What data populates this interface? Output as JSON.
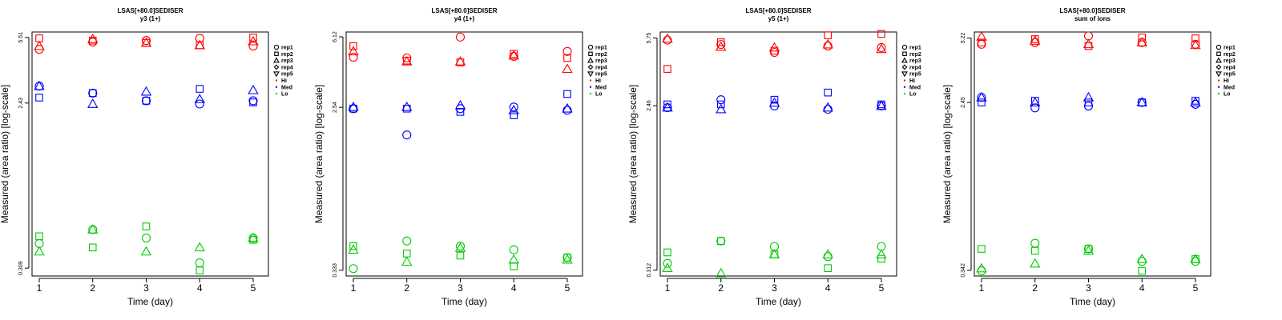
{
  "chart_data": [
    {
      "type": "scatter",
      "title": "LSAS[+80.0]SEDISER",
      "subtitle": "y3 (1+)",
      "xlabel": "Time (day)",
      "ylabel": "Measured (area ratio) [log-scale]",
      "y_scale": "log",
      "ylim": [
        0.28,
        5.9
      ],
      "x_ticks": [
        "1",
        "2",
        "3",
        "4",
        "5"
      ],
      "y_tick_values": [
        0.309,
        2.43,
        5.51
      ],
      "y_tick_labels": [
        "0.309",
        "2.43",
        "5.51"
      ],
      "legend_position": "right",
      "series": [
        {
          "name": "rep1",
          "group": "Hi",
          "marker": "circle",
          "color": "#ff0000",
          "x": [
            1,
            2,
            3,
            4,
            5
          ],
          "y": [
            4.75,
            5.2,
            5.3,
            5.45,
            4.95
          ]
        },
        {
          "name": "rep2",
          "group": "Hi",
          "marker": "square",
          "color": "#ff0000",
          "x": [
            1,
            2,
            3,
            4,
            5
          ],
          "y": [
            5.45,
            5.3,
            5.15,
            5.0,
            5.5
          ]
        },
        {
          "name": "rep3",
          "group": "Hi",
          "marker": "triangle-up",
          "color": "#ff0000",
          "x": [
            1,
            2,
            3,
            4,
            5
          ],
          "y": [
            4.95,
            5.4,
            5.15,
            5.0,
            5.25
          ]
        },
        {
          "name": "rep1",
          "group": "Med",
          "marker": "circle",
          "color": "#0000ff",
          "x": [
            1,
            2,
            3,
            4,
            5
          ],
          "y": [
            3.0,
            2.75,
            2.5,
            2.4,
            2.5
          ]
        },
        {
          "name": "rep2",
          "group": "Med",
          "marker": "square",
          "color": "#0000ff",
          "x": [
            1,
            2,
            3,
            4,
            5
          ],
          "y": [
            2.6,
            2.75,
            2.5,
            2.9,
            2.45
          ]
        },
        {
          "name": "rep3",
          "group": "Med",
          "marker": "triangle-up",
          "color": "#0000ff",
          "x": [
            1,
            2,
            3,
            4,
            5
          ],
          "y": [
            3.0,
            2.4,
            2.8,
            2.55,
            2.85
          ]
        },
        {
          "name": "rep1",
          "group": "Lo",
          "marker": "circle",
          "color": "#00cc00",
          "x": [
            1,
            2,
            3,
            4,
            5
          ],
          "y": [
            0.42,
            0.5,
            0.45,
            0.33,
            0.45
          ]
        },
        {
          "name": "rep2",
          "group": "Lo",
          "marker": "square",
          "color": "#00cc00",
          "x": [
            1,
            2,
            3,
            4,
            5
          ],
          "y": [
            0.46,
            0.4,
            0.52,
            0.3,
            0.44
          ]
        },
        {
          "name": "rep3",
          "group": "Lo",
          "marker": "triangle-up",
          "color": "#00cc00",
          "x": [
            1,
            2,
            3,
            4,
            5
          ],
          "y": [
            0.38,
            0.5,
            0.38,
            0.4,
            0.45
          ]
        }
      ]
    },
    {
      "type": "scatter",
      "title": "LSAS[+80.0]SEDISER",
      "subtitle": "y4 (1+)",
      "xlabel": "Time (day)",
      "ylabel": "Measured (area ratio) [log-scale]",
      "y_scale": "log",
      "ylim": [
        0.31,
        6.5
      ],
      "x_ticks": [
        "1",
        "2",
        "3",
        "4",
        "5"
      ],
      "y_tick_values": [
        0.333,
        2.54,
        6.12
      ],
      "y_tick_labels": [
        "0.333",
        "2.54",
        "6.12"
      ],
      "legend_position": "right",
      "series": [
        {
          "name": "rep1",
          "group": "Hi",
          "marker": "circle",
          "color": "#ff0000",
          "x": [
            1,
            2,
            3,
            4,
            5
          ],
          "y": [
            4.75,
            4.7,
            6.1,
            4.8,
            5.1
          ]
        },
        {
          "name": "rep2",
          "group": "Hi",
          "marker": "square",
          "color": "#ff0000",
          "x": [
            1,
            2,
            3,
            4,
            5
          ],
          "y": [
            5.45,
            4.55,
            4.45,
            4.95,
            4.7
          ]
        },
        {
          "name": "rep3",
          "group": "Hi",
          "marker": "triangle-up",
          "color": "#ff0000",
          "x": [
            1,
            2,
            3,
            4,
            5
          ],
          "y": [
            5.1,
            4.5,
            4.5,
            4.85,
            4.1
          ]
        },
        {
          "name": "rep1",
          "group": "Med",
          "marker": "circle",
          "color": "#0000ff",
          "x": [
            1,
            2,
            3,
            4,
            5
          ],
          "y": [
            2.5,
            1.8,
            2.5,
            2.55,
            2.45
          ]
        },
        {
          "name": "rep2",
          "group": "Med",
          "marker": "square",
          "color": "#0000ff",
          "x": [
            1,
            2,
            3,
            4,
            5
          ],
          "y": [
            2.5,
            2.5,
            2.4,
            2.3,
            3.0
          ]
        },
        {
          "name": "rep3",
          "group": "Med",
          "marker": "triangle-up",
          "color": "#0000ff",
          "x": [
            1,
            2,
            3,
            4,
            5
          ],
          "y": [
            2.55,
            2.55,
            2.6,
            2.45,
            2.5
          ]
        },
        {
          "name": "rep1",
          "group": "Lo",
          "marker": "circle",
          "color": "#00cc00",
          "x": [
            1,
            2,
            3,
            4,
            5
          ],
          "y": [
            0.34,
            0.48,
            0.45,
            0.43,
            0.39
          ]
        },
        {
          "name": "rep2",
          "group": "Lo",
          "marker": "square",
          "color": "#00cc00",
          "x": [
            1,
            2,
            3,
            4,
            5
          ],
          "y": [
            0.45,
            0.41,
            0.4,
            0.35,
            0.39
          ]
        },
        {
          "name": "rep3",
          "group": "Lo",
          "marker": "triangle-up",
          "color": "#00cc00",
          "x": [
            1,
            2,
            3,
            4,
            5
          ],
          "y": [
            0.43,
            0.37,
            0.44,
            0.38,
            0.38
          ]
        }
      ]
    },
    {
      "type": "scatter",
      "title": "LSAS[+80.0]SEDISER",
      "subtitle": "y5 (1+)",
      "xlabel": "Time (day)",
      "ylabel": "Measured (area ratio) [log-scale]",
      "y_scale": "log",
      "ylim": [
        0.29,
        6.2
      ],
      "x_ticks": [
        "1",
        "2",
        "3",
        "4",
        "5"
      ],
      "y_tick_values": [
        0.312,
        2.46,
        5.75
      ],
      "y_tick_labels": [
        "0.312",
        "2.46",
        "5.75"
      ],
      "legend_position": "right",
      "series": [
        {
          "name": "rep1",
          "group": "Hi",
          "marker": "circle",
          "color": "#ff0000",
          "x": [
            1,
            2,
            3,
            4,
            5
          ],
          "y": [
            5.6,
            5.3,
            4.8,
            5.2,
            5.1
          ]
        },
        {
          "name": "rep2",
          "group": "Hi",
          "marker": "square",
          "color": "#ff0000",
          "x": [
            1,
            2,
            3,
            4,
            5
          ],
          "y": [
            3.9,
            5.45,
            4.9,
            5.95,
            6.05
          ]
        },
        {
          "name": "rep3",
          "group": "Hi",
          "marker": "triangle-up",
          "color": "#ff0000",
          "x": [
            1,
            2,
            3,
            4,
            5
          ],
          "y": [
            5.7,
            5.15,
            5.1,
            5.3,
            5.0
          ]
        },
        {
          "name": "rep1",
          "group": "Med",
          "marker": "circle",
          "color": "#0000ff",
          "x": [
            1,
            2,
            3,
            4,
            5
          ],
          "y": [
            2.4,
            2.65,
            2.45,
            2.35,
            2.45
          ]
        },
        {
          "name": "rep2",
          "group": "Med",
          "marker": "square",
          "color": "#0000ff",
          "x": [
            1,
            2,
            3,
            4,
            5
          ],
          "y": [
            2.5,
            2.5,
            2.65,
            2.9,
            2.5
          ]
        },
        {
          "name": "rep3",
          "group": "Med",
          "marker": "triangle-up",
          "color": "#0000ff",
          "x": [
            1,
            2,
            3,
            4,
            5
          ],
          "y": [
            2.4,
            2.35,
            2.55,
            2.4,
            2.45
          ]
        },
        {
          "name": "rep1",
          "group": "Lo",
          "marker": "circle",
          "color": "#00cc00",
          "x": [
            1,
            2,
            3,
            4,
            5
          ],
          "y": [
            0.34,
            0.45,
            0.42,
            0.37,
            0.42
          ]
        },
        {
          "name": "rep2",
          "group": "Lo",
          "marker": "square",
          "color": "#00cc00",
          "x": [
            1,
            2,
            3,
            4,
            5
          ],
          "y": [
            0.39,
            0.45,
            0.38,
            0.32,
            0.36
          ]
        },
        {
          "name": "rep3",
          "group": "Lo",
          "marker": "triangle-up",
          "color": "#00cc00",
          "x": [
            1,
            2,
            3,
            4,
            5
          ],
          "y": [
            0.32,
            0.3,
            0.38,
            0.38,
            0.38
          ]
        }
      ]
    },
    {
      "type": "scatter",
      "title": "LSAS[+80.0]SEDISER",
      "subtitle": "sum of ions",
      "xlabel": "Time (day)",
      "ylabel": "Measured (area ratio) [log-scale]",
      "y_scale": "log",
      "ylim": [
        0.32,
        5.6
      ],
      "x_ticks": [
        "1",
        "2",
        "3",
        "4",
        "5"
      ],
      "y_tick_values": [
        0.342,
        2.45,
        5.22
      ],
      "y_tick_labels": [
        "0.342",
        "2.45",
        "5.22"
      ],
      "legend_position": "right",
      "series": [
        {
          "name": "rep1",
          "group": "Hi",
          "marker": "circle",
          "color": "#ff0000",
          "x": [
            1,
            2,
            3,
            4,
            5
          ],
          "y": [
            4.85,
            4.95,
            5.35,
            4.95,
            4.85
          ]
        },
        {
          "name": "rep2",
          "group": "Hi",
          "marker": "square",
          "color": "#ff0000",
          "x": [
            1,
            2,
            3,
            4,
            5
          ],
          "y": [
            4.95,
            5.15,
            4.75,
            5.25,
            5.2
          ]
        },
        {
          "name": "rep3",
          "group": "Hi",
          "marker": "triangle-up",
          "color": "#ff0000",
          "x": [
            1,
            2,
            3,
            4,
            5
          ],
          "y": [
            5.3,
            5.05,
            4.85,
            4.95,
            4.8
          ]
        },
        {
          "name": "rep1",
          "group": "Med",
          "marker": "circle",
          "color": "#0000ff",
          "x": [
            1,
            2,
            3,
            4,
            5
          ],
          "y": [
            2.6,
            2.3,
            2.35,
            2.45,
            2.4
          ]
        },
        {
          "name": "rep2",
          "group": "Med",
          "marker": "square",
          "color": "#0000ff",
          "x": [
            1,
            2,
            3,
            4,
            5
          ],
          "y": [
            2.45,
            2.5,
            2.45,
            2.45,
            2.5
          ]
        },
        {
          "name": "rep3",
          "group": "Med",
          "marker": "triangle-up",
          "color": "#0000ff",
          "x": [
            1,
            2,
            3,
            4,
            5
          ],
          "y": [
            2.6,
            2.45,
            2.6,
            2.45,
            2.45
          ]
        },
        {
          "name": "rep1",
          "group": "Lo",
          "marker": "circle",
          "color": "#00cc00",
          "x": [
            1,
            2,
            3,
            4,
            5
          ],
          "y": [
            0.34,
            0.47,
            0.44,
            0.38,
            0.38
          ]
        },
        {
          "name": "rep2",
          "group": "Lo",
          "marker": "square",
          "color": "#00cc00",
          "x": [
            1,
            2,
            3,
            4,
            5
          ],
          "y": [
            0.44,
            0.43,
            0.44,
            0.34,
            0.39
          ]
        },
        {
          "name": "rep3",
          "group": "Lo",
          "marker": "triangle-up",
          "color": "#00cc00",
          "x": [
            1,
            2,
            3,
            4,
            5
          ],
          "y": [
            0.35,
            0.37,
            0.43,
            0.39,
            0.39
          ]
        }
      ]
    }
  ],
  "legend": {
    "entries": [
      {
        "label": "rep1",
        "marker": "circle",
        "color": "#000000"
      },
      {
        "label": "rep2",
        "marker": "square",
        "color": "#000000"
      },
      {
        "label": "rep3",
        "marker": "triangle-up",
        "color": "#000000"
      },
      {
        "label": "rep4",
        "marker": "diamond",
        "color": "#000000"
      },
      {
        "label": "rep5",
        "marker": "triangle-down",
        "color": "#000000"
      },
      {
        "label": "Hi",
        "marker": "dot",
        "color": "#ff0000"
      },
      {
        "label": "Med",
        "marker": "dot",
        "color": "#0000ff"
      },
      {
        "label": "Lo",
        "marker": "dot",
        "color": "#00cc00"
      }
    ]
  }
}
